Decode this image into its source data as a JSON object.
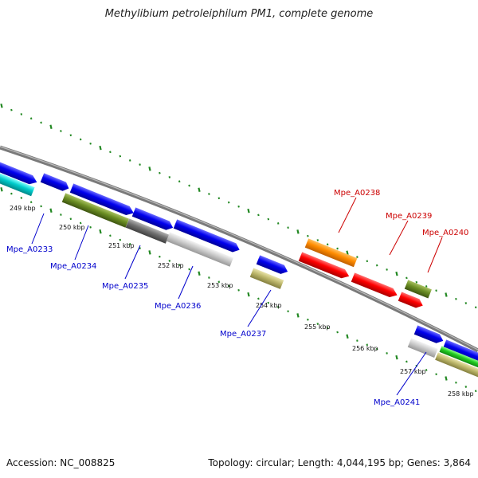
{
  "title": "Methylibium petroleiphilum PM1, complete genome",
  "footer": {
    "accession": "Accession: NC_008825",
    "summary": "Topology: circular; Length: 4,044,195 bp; Genes: 3,864"
  },
  "scale": {
    "ticks": [
      "249 kbp",
      "250 kbp",
      "251 kbp",
      "252 kbp",
      "253 kbp",
      "254 kbp",
      "255 kbp",
      "256 kbp",
      "257 kbp",
      "258 kbp"
    ]
  },
  "genes": [
    {
      "id": "Mpe_A0233",
      "color": "#0000cc"
    },
    {
      "id": "Mpe_A0234",
      "color": "#0000cc"
    },
    {
      "id": "Mpe_A0235",
      "color": "#0000cc"
    },
    {
      "id": "Mpe_A0236",
      "color": "#0000cc"
    },
    {
      "id": "Mpe_A0237",
      "color": "#0000cc"
    },
    {
      "id": "Mpe_A0238",
      "color": "#cc0000"
    },
    {
      "id": "Mpe_A0239",
      "color": "#cc0000"
    },
    {
      "id": "Mpe_A0240",
      "color": "#cc0000"
    },
    {
      "id": "Mpe_A0241",
      "color": "#0000cc"
    }
  ],
  "colors": {
    "backbone": "#888888",
    "ticks": "#228822",
    "blue": "#0000ee",
    "red": "#ff0000",
    "orange": "#ff8c00",
    "olive": "#6b8e23",
    "cyan": "#00cccc",
    "gray": "#707070",
    "lightgray": "#cccccc",
    "khaki": "#bdb76b",
    "green": "#22cc22"
  }
}
